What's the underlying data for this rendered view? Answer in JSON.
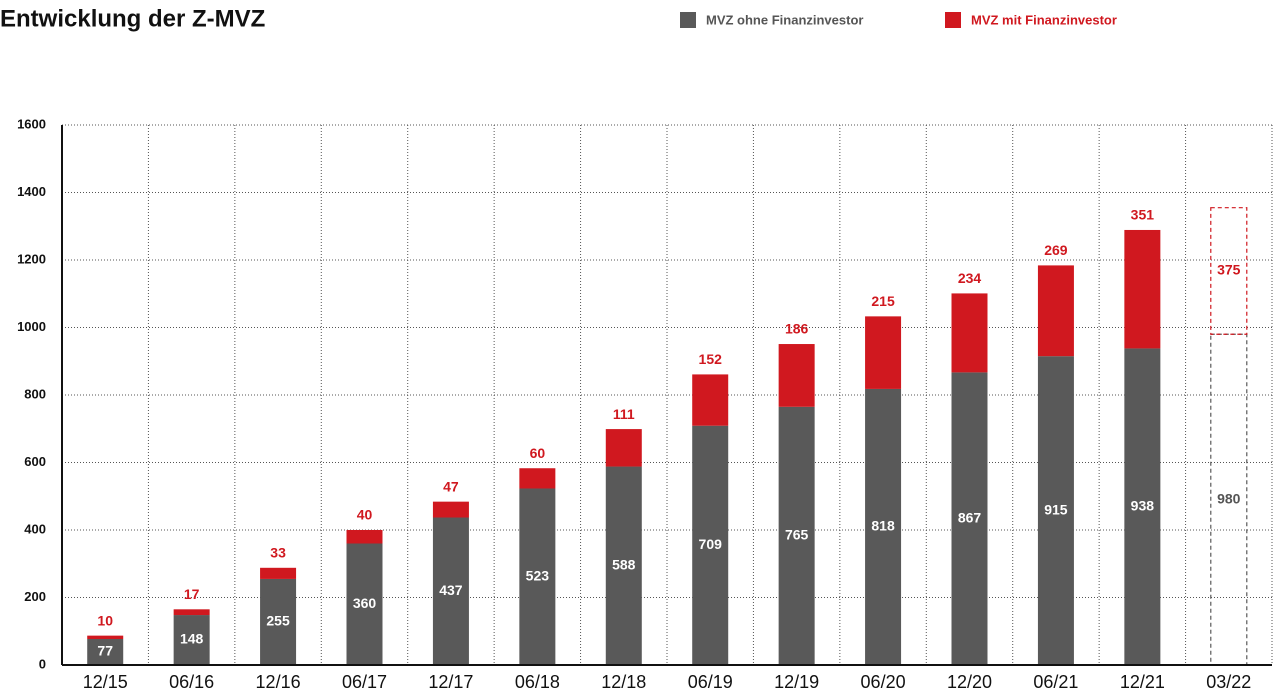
{
  "chart_data": {
    "type": "stacked_bar",
    "title": "Entwicklung der Z-MVZ",
    "categories": [
      "12/15",
      "06/16",
      "12/16",
      "06/17",
      "12/17",
      "06/18",
      "12/18",
      "06/19",
      "12/19",
      "06/20",
      "12/20",
      "06/21",
      "12/21",
      "03/22"
    ],
    "series": [
      {
        "name": "MVZ ohne Finanzinvestor",
        "color": "#595959",
        "values": [
          77,
          148,
          255,
          360,
          437,
          523,
          588,
          709,
          765,
          818,
          867,
          915,
          938,
          980
        ]
      },
      {
        "name": "MVZ mit Finanzinvestor",
        "color": "#d0181f",
        "values": [
          10,
          17,
          33,
          40,
          47,
          60,
          111,
          152,
          186,
          215,
          234,
          269,
          351,
          375
        ]
      }
    ],
    "dashed": [
      false,
      false,
      false,
      false,
      false,
      false,
      false,
      false,
      false,
      false,
      false,
      false,
      false,
      true
    ],
    "ylim": [
      0,
      1600
    ],
    "yticks": [
      0,
      200,
      400,
      600,
      800,
      1000,
      1200,
      1400,
      1600
    ],
    "grid": true,
    "legend": "top-right"
  }
}
